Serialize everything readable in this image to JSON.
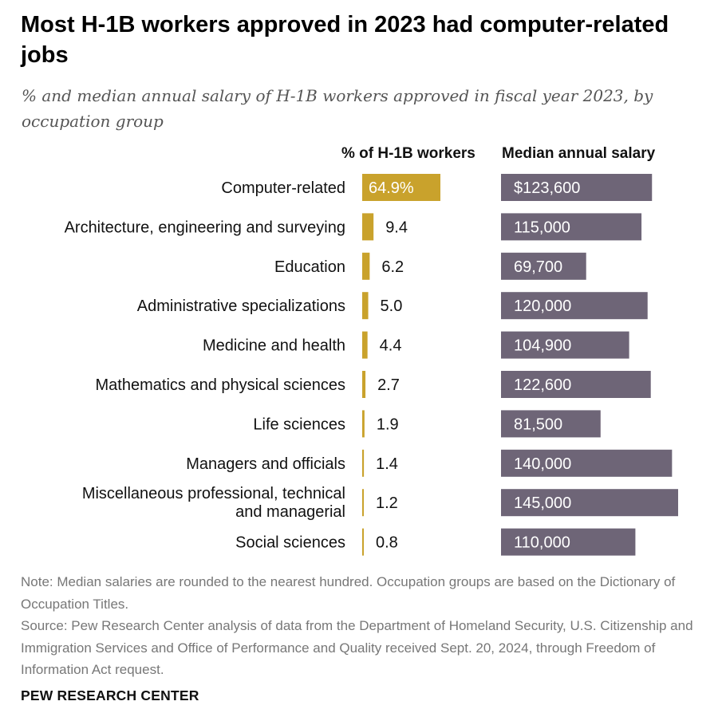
{
  "title": "Most H-1B workers approved in 2023 had computer-related jobs",
  "subtitle": "% and median annual salary of H-1B workers approved in fiscal year 2023, by occupation group",
  "chart_data": {
    "type": "bar",
    "categories": [
      "Computer-related",
      "Architecture, engineering and surveying",
      "Education",
      "Administrative specializations",
      "Medicine and health",
      "Mathematics and physical sciences",
      "Life sciences",
      "Managers and officials",
      "Miscellaneous professional, technical and managerial",
      "Social sciences"
    ],
    "series": [
      {
        "name": "% of H-1B workers",
        "values": [
          64.9,
          9.4,
          6.2,
          5.0,
          4.4,
          2.7,
          1.9,
          1.4,
          1.2,
          0.8
        ],
        "labels": [
          "64.9%",
          "9.4",
          "6.2",
          "5.0",
          "4.4",
          "2.7",
          "1.9",
          "1.4",
          "1.2",
          "0.8"
        ],
        "color": "#c9a22c"
      },
      {
        "name": "Median annual salary",
        "values": [
          123600,
          115000,
          69700,
          120000,
          104900,
          122600,
          81500,
          140000,
          145000,
          110000
        ],
        "labels": [
          "$123,600",
          "115,000",
          "69,700",
          "120,000",
          "104,900",
          "122,600",
          "81,500",
          "140,000",
          "145,000",
          "110,000"
        ],
        "color": "#6e6577"
      }
    ]
  },
  "notes": {
    "note": "Note: Median salaries are rounded to the nearest hundred. Occupation groups are based on the Dictionary of Occupation Titles.",
    "source": "Source: Pew Research Center analysis of data from the Department of Homeland Security, U.S. Citizenship and Immigration Services and Office of Performance and Quality received Sept. 20, 2024, through Freedom of Information Act request."
  },
  "brand": "PEW RESEARCH CENTER"
}
